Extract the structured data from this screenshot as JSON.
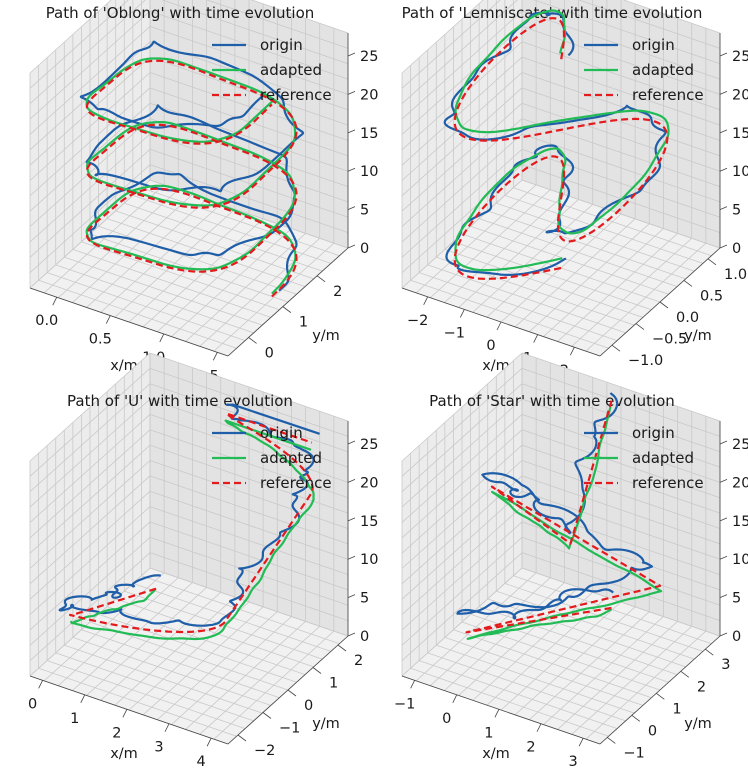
{
  "figure_title": "",
  "legend_labels": {
    "origin": "origin",
    "adapted": "adapted",
    "reference": "reference"
  },
  "colors": {
    "origin": "#1f5ea8",
    "adapted": "#22bb55",
    "reference": "#e41a1c"
  },
  "chart_data": [
    {
      "type": "line3d",
      "title": "Path of 'Oblong' with time evolution",
      "xlabel": "x/m",
      "ylabel": "y/m",
      "zlabel": "",
      "xlim": [
        -0.25,
        1.6
      ],
      "ylim": [
        -0.6,
        2.9
      ],
      "zlim": [
        0,
        28
      ],
      "xticks": [
        0.0,
        0.5,
        1.0,
        1.5
      ],
      "xtick_labels": [
        "0.0",
        "0.5",
        "1.0",
        "1.5"
      ],
      "yticks": [
        0,
        1,
        2
      ],
      "ytick_labels": [
        "0",
        "1",
        "2"
      ],
      "zticks": [
        0,
        5,
        10,
        15,
        20,
        25
      ],
      "ztick_labels": [
        "0",
        "5",
        "10",
        "15",
        "20",
        "25"
      ],
      "shape": "oblong",
      "path_params": {
        "cx": 0.7,
        "cy": 1.15,
        "rx": 0.75,
        "ry": 1.3,
        "turns": 3,
        "z_start": 0,
        "z_end": 25
      },
      "series": [
        {
          "name": "origin",
          "style": "solid",
          "noise": 0.07,
          "offset": [
            -0.05,
            -0.05,
            1.5
          ]
        },
        {
          "name": "adapted",
          "style": "solid",
          "noise": 0.01,
          "offset": [
            0.0,
            0.02,
            0.3
          ]
        },
        {
          "name": "reference",
          "style": "dashed",
          "noise": 0.0,
          "offset": [
            0,
            0,
            0
          ]
        }
      ]
    },
    {
      "type": "line3d",
      "title": "Path of 'Lemniscate' with time evolution",
      "xlabel": "x/m",
      "ylabel": "y/m",
      "zlabel": "",
      "xlim": [
        -2.7,
        2.7
      ],
      "ylim": [
        -1.25,
        1.25
      ],
      "zlim": [
        0,
        28
      ],
      "xticks": [
        -2,
        -1,
        0,
        1,
        2
      ],
      "xtick_labels": [
        "−2",
        "−1",
        "0",
        "1",
        "2"
      ],
      "yticks": [
        -1.0,
        -0.5,
        0.0,
        0.5,
        1.0
      ],
      "ytick_labels": [
        "−1.0",
        "−0.5",
        "0.0",
        "0.5",
        "1.0"
      ],
      "zticks": [
        0,
        5,
        10,
        15,
        20,
        25
      ],
      "ztick_labels": [
        "0",
        "5",
        "10",
        "15",
        "20",
        "25"
      ],
      "shape": "lemniscate",
      "path_params": {
        "a": 2.1,
        "b": 1.0,
        "turns": 1.5,
        "z_start": 0,
        "z_end": 27
      },
      "series": [
        {
          "name": "origin",
          "style": "solid",
          "noise": 0.06,
          "offset": [
            -0.1,
            0.05,
            0.8
          ]
        },
        {
          "name": "adapted",
          "style": "solid",
          "noise": 0.01,
          "offset": [
            0.05,
            -0.03,
            1.2
          ]
        },
        {
          "name": "reference",
          "style": "dashed",
          "noise": 0.0,
          "offset": [
            0,
            0,
            0
          ]
        }
      ]
    },
    {
      "type": "line3d",
      "title": "Path of 'U' with time evolution",
      "xlabel": "x/m",
      "ylabel": "y/m",
      "zlabel": "",
      "xlim": [
        -0.3,
        4.4
      ],
      "ylim": [
        -2.4,
        2.4
      ],
      "zlim": [
        0,
        28
      ],
      "xticks": [
        0,
        1,
        2,
        3,
        4
      ],
      "xtick_labels": [
        "0",
        "1",
        "2",
        "3",
        "4"
      ],
      "yticks": [
        -2,
        -1,
        0,
        1,
        2
      ],
      "ytick_labels": [
        "−2",
        "−1",
        "0",
        "1",
        "2"
      ],
      "zticks": [
        0,
        5,
        10,
        15,
        20,
        25
      ],
      "ztick_labels": [
        "0",
        "5",
        "10",
        "15",
        "20",
        "25"
      ],
      "shape": "u",
      "path_params": {
        "x0": 0.2,
        "x1": 3.9,
        "ylo": -1.6,
        "yhi": 1.8,
        "z_start": 0,
        "z_end": 26
      },
      "series": [
        {
          "name": "origin",
          "style": "solid",
          "noise": 0.06,
          "offset": [
            -0.15,
            0.1,
            1.0
          ]
        },
        {
          "name": "adapted",
          "style": "solid",
          "noise": 0.01,
          "offset": [
            0.05,
            -0.05,
            -0.8
          ]
        },
        {
          "name": "reference",
          "style": "dashed",
          "noise": 0.0,
          "offset": [
            0,
            0,
            0
          ]
        }
      ]
    },
    {
      "type": "line3d",
      "title": "Path of 'Star' with time evolution",
      "xlabel": "x/m",
      "ylabel": "y/m",
      "zlabel": "",
      "xlim": [
        -1.3,
        3.4
      ],
      "ylim": [
        -1.3,
        3.6
      ],
      "zlim": [
        0,
        28
      ],
      "xticks": [
        -1,
        0,
        1,
        2,
        3
      ],
      "xtick_labels": [
        "−1",
        "0",
        "1",
        "2",
        "3"
      ],
      "yticks": [
        -1,
        0,
        1,
        2,
        3
      ],
      "ytick_labels": [
        "−1",
        "0",
        "1",
        "2",
        "3"
      ],
      "zticks": [
        0,
        5,
        10,
        15,
        20,
        25
      ],
      "ztick_labels": [
        "0",
        "5",
        "10",
        "15",
        "20",
        "25"
      ],
      "shape": "star",
      "path_params": {
        "cx": 1.0,
        "cy": 1.2,
        "r": 2.1,
        "points": 5,
        "z_start": 0,
        "z_end": 27
      },
      "series": [
        {
          "name": "origin",
          "style": "solid",
          "noise": 0.07,
          "offset": [
            -0.2,
            0.2,
            1.5
          ]
        },
        {
          "name": "adapted",
          "style": "solid",
          "noise": 0.01,
          "offset": [
            0.05,
            -0.05,
            -0.6
          ]
        },
        {
          "name": "reference",
          "style": "dashed",
          "noise": 0.0,
          "offset": [
            0,
            0,
            0
          ]
        }
      ]
    }
  ]
}
